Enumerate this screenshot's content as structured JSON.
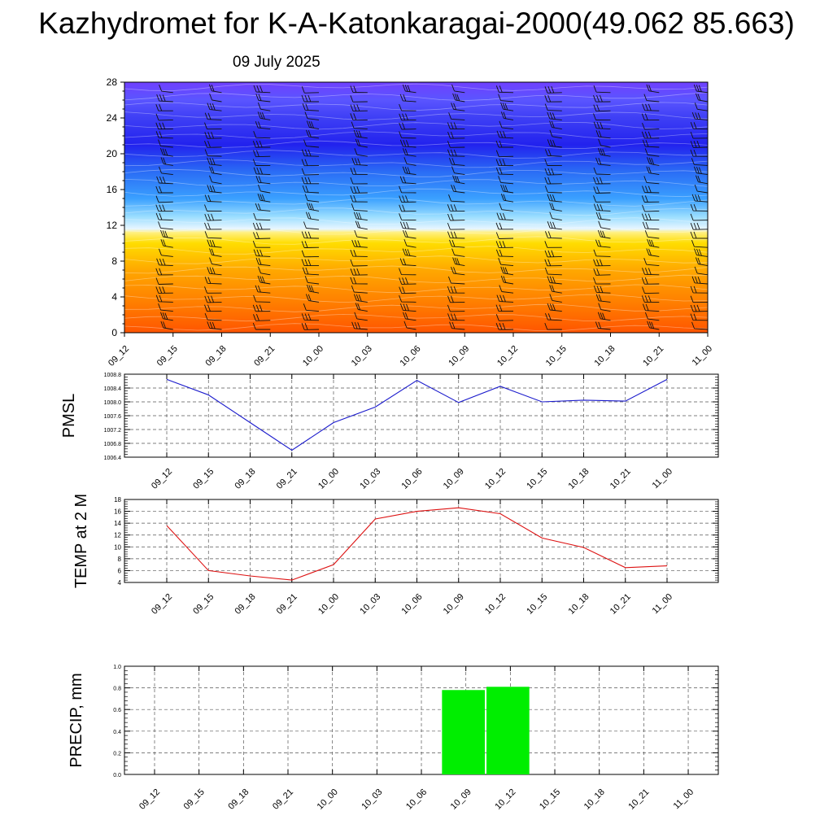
{
  "header": {
    "title": "Kazhydromet for K-A-Katonkaragai-2000(49.062 85.663)",
    "date": "09 July 2025"
  },
  "colors": {
    "pmsl_line": "#1a1acc",
    "temp_line": "#dd1111",
    "precip_bar": "#00ee00",
    "field_low": "#ff5500",
    "field_mid": "#ffe600",
    "field_freeze": "#99ddff",
    "field_high": "#3333ee",
    "field_top": "#8833ff"
  },
  "chart_data": [
    {
      "type": "heatmap",
      "name": "upper-field",
      "title": "",
      "ylabel": "",
      "x": [
        "09_12",
        "09_15",
        "09_18",
        "09_21",
        "10_00",
        "10_03",
        "10_06",
        "10_09",
        "10_12",
        "10_15",
        "10_18",
        "10_21",
        "11_00"
      ],
      "ylim": [
        0,
        28
      ],
      "yticks": [
        0,
        4,
        8,
        12,
        16,
        20,
        24,
        28
      ],
      "gradient": [
        {
          "level": 0,
          "color": "#ff5500"
        },
        {
          "level": 3,
          "color": "#ff7a00"
        },
        {
          "level": 7,
          "color": "#ffa800"
        },
        {
          "level": 10,
          "color": "#ffdd00"
        },
        {
          "level": 11.2,
          "color": "#fff080"
        },
        {
          "level": 11.6,
          "color": "#e8f6ff"
        },
        {
          "level": 13,
          "color": "#99ddff"
        },
        {
          "level": 15,
          "color": "#3aa0ff"
        },
        {
          "level": 18,
          "color": "#2a6cf5"
        },
        {
          "level": 21,
          "color": "#2222ee"
        },
        {
          "level": 24,
          "color": "#3e3ff5"
        },
        {
          "level": 26,
          "color": "#5a55ff"
        },
        {
          "level": 28,
          "color": "#7040ff"
        }
      ],
      "wind_barbs": "present"
    },
    {
      "type": "line",
      "name": "pmsl",
      "ylabel": "PMSL",
      "x": [
        "09_12",
        "09_15",
        "09_18",
        "09_21",
        "10_00",
        "10_03",
        "10_06",
        "10_09",
        "10_12",
        "10_15",
        "10_18",
        "10_21",
        "11_00"
      ],
      "values": [
        1008.65,
        1008.2,
        1007.4,
        1006.6,
        1007.4,
        1007.85,
        1008.62,
        1007.98,
        1008.45,
        1008.0,
        1008.05,
        1008.02,
        1008.65
      ],
      "ylim": [
        1006.4,
        1008.8
      ],
      "yticks": [
        "1006.4",
        "1006.8",
        "1007.2",
        "1007.6",
        "1008.0",
        "1008.4",
        "1008.8"
      ]
    },
    {
      "type": "line",
      "name": "temp",
      "ylabel": "TEMP at 2 M",
      "x": [
        "09_12",
        "09_15",
        "09_18",
        "09_21",
        "10_00",
        "10_03",
        "10_06",
        "10_09",
        "10_12",
        "10_15",
        "10_18",
        "10_21",
        "11_00"
      ],
      "values": [
        13.6,
        6.0,
        5.1,
        4.4,
        7.0,
        14.7,
        16.0,
        16.6,
        15.6,
        11.5,
        9.9,
        6.5,
        6.8
      ],
      "ylim": [
        4,
        18
      ],
      "yticks": [
        "4",
        "6",
        "8",
        "10",
        "12",
        "14",
        "16",
        "18"
      ]
    },
    {
      "type": "bar",
      "name": "precip",
      "ylabel": "PRECIP, mm",
      "categories": [
        "09_12",
        "09_15",
        "09_18",
        "09_21",
        "10_00",
        "10_03",
        "10_06",
        "10_09",
        "10_12",
        "10_15",
        "10_18",
        "10_21",
        "11_00"
      ],
      "values": [
        0,
        0,
        0,
        0,
        0,
        0,
        0,
        0.78,
        0.81,
        0,
        0,
        0,
        0
      ],
      "ylim": [
        0,
        1
      ],
      "yticks": [
        "0.0",
        "0.2",
        "0.4",
        "0.6",
        "0.8",
        "1.0"
      ]
    }
  ]
}
